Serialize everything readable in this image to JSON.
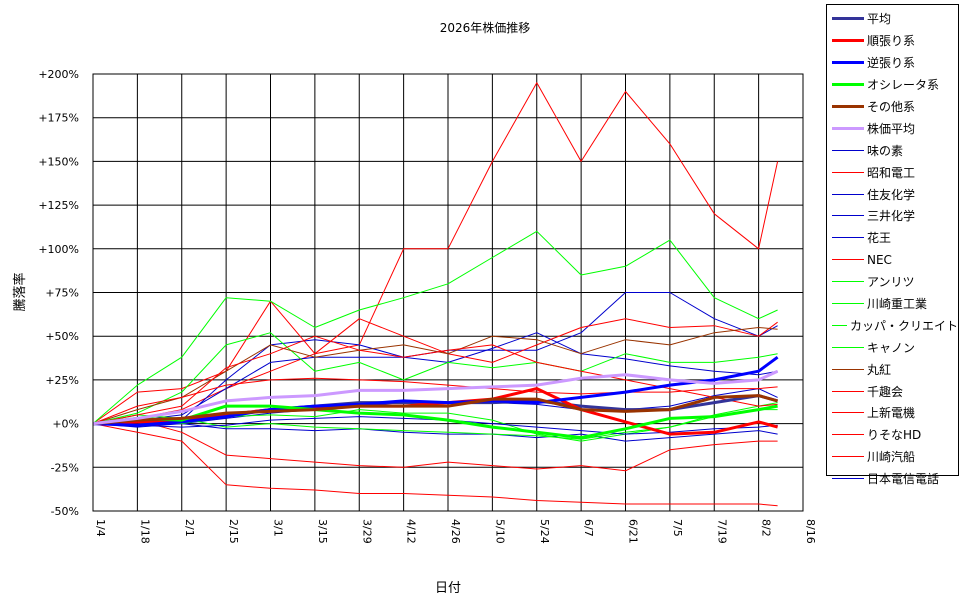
{
  "chart_data": {
    "type": "line",
    "title": "2026年株価推移",
    "xlabel": "日付",
    "ylabel": "騰落率",
    "x_ticks": [
      "1/4",
      "1/18",
      "2/1",
      "2/15",
      "3/1",
      "3/15",
      "3/29",
      "4/12",
      "4/26",
      "5/10",
      "5/24",
      "6/7",
      "6/21",
      "7/5",
      "7/19",
      "8/2",
      "8/16"
    ],
    "y_ticks": [
      "+200%",
      "+175%",
      "+150%",
      "+125%",
      "+100%",
      "+75%",
      "+50%",
      "+25%",
      "+0%",
      "-25%",
      "-50%"
    ],
    "ylim": [
      -50,
      200
    ],
    "grid": true,
    "legend_position": "right",
    "x_points": [
      "1/4",
      "1/18",
      "2/1",
      "2/15",
      "3/1",
      "3/15",
      "3/29",
      "4/12",
      "4/26",
      "5/10",
      "5/24",
      "6/7",
      "6/21",
      "7/5",
      "7/19",
      "8/2",
      "8/8"
    ],
    "series": [
      {
        "name": "平均",
        "color": "#333399",
        "width": 3,
        "values": [
          0,
          1,
          2,
          5,
          8,
          10,
          12,
          12,
          12,
          12,
          13,
          10,
          8,
          8,
          12,
          16,
          13
        ]
      },
      {
        "name": "順張り系",
        "color": "#ff0000",
        "width": 3,
        "values": [
          0,
          1,
          2,
          5,
          8,
          9,
          10,
          10,
          12,
          14,
          20,
          8,
          1,
          -6,
          -5,
          1,
          -2
        ]
      },
      {
        "name": "逆張り系",
        "color": "#0000ff",
        "width": 3,
        "values": [
          0,
          -1,
          1,
          4,
          8,
          10,
          11,
          13,
          12,
          13,
          12,
          15,
          18,
          22,
          25,
          30,
          38
        ]
      },
      {
        "name": "オシレータ系",
        "color": "#00ff00",
        "width": 3,
        "values": [
          0,
          3,
          2,
          10,
          10,
          8,
          6,
          5,
          2,
          -2,
          -5,
          -8,
          -3,
          3,
          4,
          8,
          10
        ]
      },
      {
        "name": "その他系",
        "color": "#993300",
        "width": 3,
        "values": [
          0,
          2,
          3,
          6,
          7,
          8,
          10,
          10,
          10,
          14,
          14,
          8,
          7,
          8,
          15,
          16,
          13
        ]
      },
      {
        "name": "株価平均",
        "color": "#cc99ff",
        "width": 3,
        "values": [
          0,
          3,
          7,
          13,
          15,
          16,
          19,
          19,
          20,
          21,
          22,
          26,
          28,
          25,
          23,
          25,
          30
        ]
      },
      {
        "name": "味の素",
        "color": "#0000cc",
        "width": 1,
        "values": [
          0,
          -2,
          0,
          3,
          6,
          8,
          10,
          12,
          12,
          12,
          11,
          8,
          8,
          10,
          16,
          20,
          15
        ]
      },
      {
        "name": "昭和電工",
        "color": "#ff0000",
        "width": 1,
        "values": [
          0,
          3,
          8,
          20,
          30,
          40,
          45,
          100,
          100,
          150,
          195,
          150,
          190,
          160,
          120,
          100,
          150
        ]
      },
      {
        "name": "住友化学",
        "color": "#0000cc",
        "width": 1,
        "values": [
          0,
          2,
          5,
          20,
          35,
          38,
          38,
          38,
          42,
          42,
          42,
          52,
          75,
          75,
          60,
          50,
          56
        ]
      },
      {
        "name": "三井化学",
        "color": "#0000cc",
        "width": 1,
        "values": [
          0,
          -1,
          0,
          -3,
          -3,
          -4,
          -3,
          -5,
          -6,
          -6,
          -8,
          -6,
          -10,
          -8,
          -6,
          -4,
          -6
        ]
      },
      {
        "name": "花王",
        "color": "#0000cc",
        "width": 1,
        "values": [
          0,
          1,
          2,
          25,
          45,
          48,
          45,
          38,
          35,
          43,
          52,
          40,
          37,
          33,
          30,
          28,
          30
        ]
      },
      {
        "name": "NEC",
        "color": "#ff0000",
        "width": 1,
        "values": [
          0,
          18,
          20,
          30,
          70,
          40,
          60,
          50,
          40,
          35,
          45,
          55,
          60,
          55,
          56,
          50,
          58
        ]
      },
      {
        "name": "アンリツ",
        "color": "#00ff00",
        "width": 1,
        "values": [
          0,
          22,
          38,
          72,
          70,
          55,
          65,
          72,
          80,
          95,
          110,
          85,
          90,
          105,
          72,
          60,
          65
        ]
      },
      {
        "name": "川崎重工業",
        "color": "#00ff00",
        "width": 1,
        "values": [
          0,
          6,
          18,
          45,
          52,
          30,
          35,
          25,
          35,
          32,
          35,
          30,
          40,
          35,
          35,
          38,
          40
        ]
      },
      {
        "name": "カッパ・クリエイト",
        "color": "#00ff00",
        "width": 1,
        "values": [
          0,
          5,
          3,
          -2,
          0,
          -2,
          -3,
          -4,
          -5,
          -6,
          -7,
          -9,
          -5,
          -2,
          5,
          10,
          12
        ]
      },
      {
        "name": "キャノン",
        "color": "#00ff00",
        "width": 1,
        "values": [
          0,
          2,
          0,
          4,
          5,
          4,
          8,
          6,
          6,
          2,
          -6,
          -10,
          -6,
          -2,
          4,
          8,
          8
        ]
      },
      {
        "name": "丸紅",
        "color": "#993300",
        "width": 1,
        "values": [
          0,
          8,
          15,
          30,
          45,
          38,
          42,
          45,
          40,
          50,
          48,
          40,
          48,
          45,
          52,
          55,
          54
        ]
      },
      {
        "name": "千趣会",
        "color": "#ff0000",
        "width": 1,
        "values": [
          0,
          10,
          15,
          22,
          25,
          26,
          25,
          24,
          22,
          20,
          18,
          17,
          18,
          18,
          20,
          20,
          21
        ]
      },
      {
        "name": "上新電機",
        "color": "#ff0000",
        "width": 1,
        "values": [
          0,
          5,
          10,
          32,
          40,
          50,
          42,
          38,
          42,
          45,
          35,
          30,
          25,
          20,
          15,
          10,
          11
        ]
      },
      {
        "name": "りそなHD",
        "color": "#ff0000",
        "width": 1,
        "values": [
          0,
          -5,
          -10,
          -35,
          -37,
          -38,
          -40,
          -40,
          -41,
          -42,
          -44,
          -45,
          -46,
          -46,
          -46,
          -46,
          -47
        ]
      },
      {
        "name": "川崎汽船",
        "color": "#ff0000",
        "width": 1,
        "values": [
          0,
          2,
          -5,
          -18,
          -20,
          -22,
          -24,
          -25,
          -22,
          -24,
          -26,
          -24,
          -27,
          -15,
          -12,
          -10,
          -10
        ]
      },
      {
        "name": "日本電信電話",
        "color": "#0000cc",
        "width": 1,
        "values": [
          0,
          -1,
          -2,
          -1,
          2,
          3,
          4,
          3,
          2,
          0,
          -2,
          -4,
          -6,
          -5,
          -3,
          -2,
          -1
        ]
      }
    ]
  }
}
